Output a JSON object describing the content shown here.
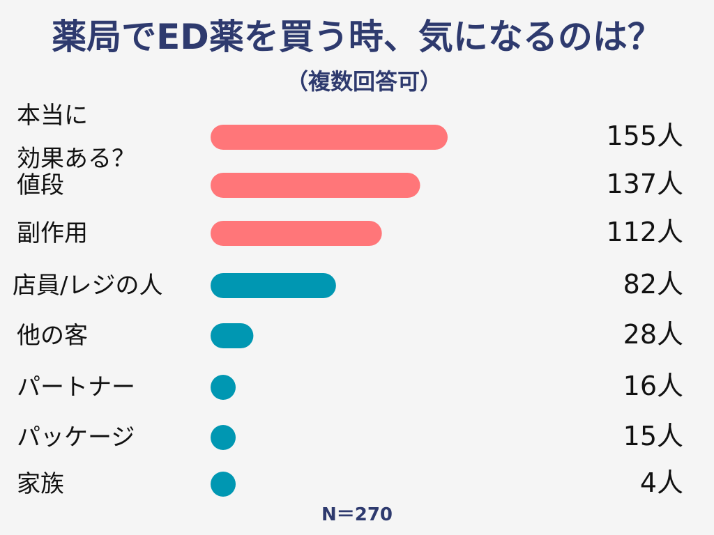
{
  "chart_data": {
    "type": "bar",
    "orientation": "horizontal",
    "title": "薬局でED薬を買う時、気になるのは？",
    "subtitle": "（複数回答可）",
    "categories": [
      [
        "本当に",
        "効果ある？"
      ],
      [
        "値段"
      ],
      [
        "副作用"
      ],
      [
        "店員/レジの人"
      ],
      [
        "他の客"
      ],
      [
        "パートナー"
      ],
      [
        "パッケージ"
      ],
      [
        "家族"
      ]
    ],
    "values": [
      155,
      137,
      112,
      82,
      28,
      16,
      15,
      4
    ],
    "value_labels": [
      "155人",
      "137人",
      "112人",
      "82人",
      "28人",
      "16人",
      "15人",
      "4人"
    ],
    "bar_colors": [
      "#ff7679",
      "#ff7679",
      "#ff7679",
      "#0097b2",
      "#0097b2",
      "#0097b2",
      "#0097b2",
      "#0097b2"
    ],
    "xlim": [
      0,
      160
    ],
    "note": "N＝270"
  }
}
